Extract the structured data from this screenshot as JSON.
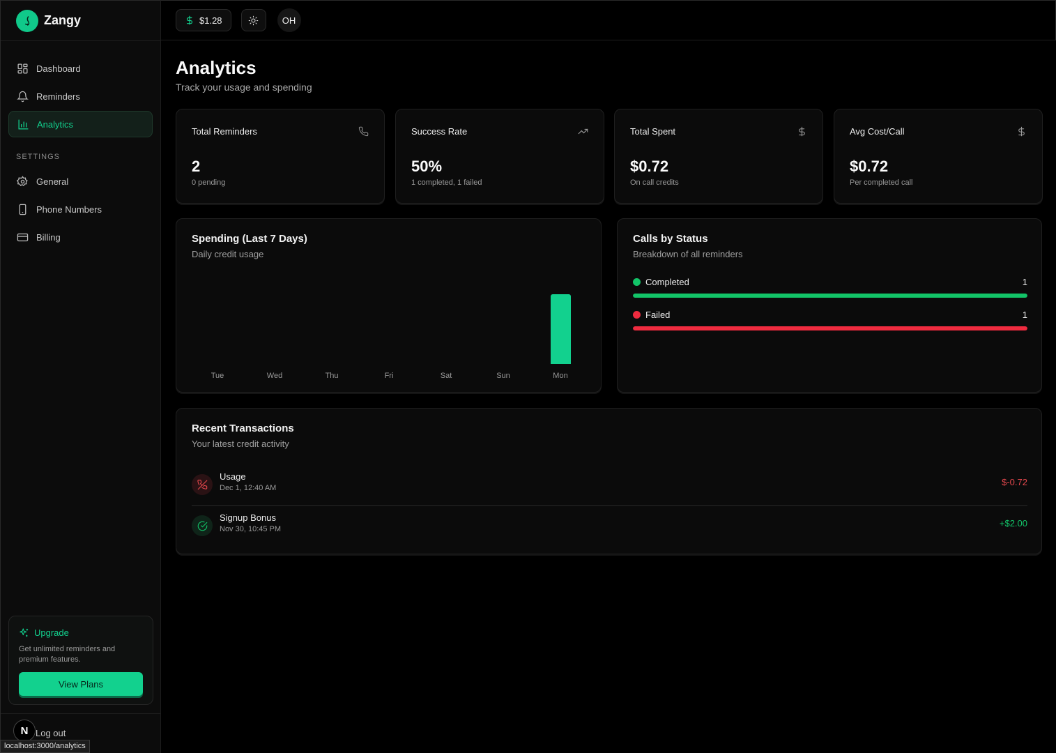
{
  "brand": {
    "name": "Zangy",
    "accent": "#12d18e"
  },
  "sidebar": {
    "items": [
      {
        "label": "Dashboard",
        "icon": "dashboard-icon"
      },
      {
        "label": "Reminders",
        "icon": "bell-icon"
      },
      {
        "label": "Analytics",
        "icon": "bar-chart-icon",
        "active": true
      }
    ],
    "settings_heading": "SETTINGS",
    "settings_items": [
      {
        "label": "General",
        "icon": "gear-icon"
      },
      {
        "label": "Phone Numbers",
        "icon": "phone-device-icon"
      },
      {
        "label": "Billing",
        "icon": "credit-card-icon"
      }
    ],
    "upgrade": {
      "title": "Upgrade",
      "description": "Get unlimited reminders and premium features.",
      "button": "View Plans"
    },
    "logout": "Log out",
    "next_badge": "N"
  },
  "status_url": "localhost:3000/analytics",
  "topbar": {
    "credits": "$1.28",
    "avatar_initials": "OH"
  },
  "page": {
    "title": "Analytics",
    "subtitle": "Track your usage and spending"
  },
  "stats": [
    {
      "label": "Total Reminders",
      "value": "2",
      "sub": "0 pending",
      "icon": "phone-icon"
    },
    {
      "label": "Success Rate",
      "value": "50%",
      "sub": "1 completed, 1 failed",
      "icon": "trending-up-icon"
    },
    {
      "label": "Total Spent",
      "value": "$0.72",
      "sub": "On call credits",
      "icon": "dollar-icon"
    },
    {
      "label": "Avg Cost/Call",
      "value": "$0.72",
      "sub": "Per completed call",
      "icon": "dollar-icon"
    }
  ],
  "spending": {
    "title": "Spending (Last 7 Days)",
    "subtitle": "Daily credit usage"
  },
  "chart_data": {
    "type": "bar",
    "categories": [
      "Tue",
      "Wed",
      "Thu",
      "Fri",
      "Sat",
      "Sun",
      "Mon"
    ],
    "values": [
      0,
      0,
      0,
      0,
      0,
      0,
      0.72
    ],
    "title": "Spending (Last 7 Days)",
    "subtitle": "Daily credit usage",
    "xlabel": "",
    "ylabel": "",
    "ylim": [
      0,
      0.72
    ],
    "grid": false,
    "color": "#12d18e"
  },
  "calls_by_status": {
    "title": "Calls by Status",
    "subtitle": "Breakdown of all reminders",
    "rows": [
      {
        "label": "Completed",
        "count": "1",
        "fraction": 1.0,
        "color": "#12c468"
      },
      {
        "label": "Failed",
        "count": "1",
        "fraction": 1.0,
        "color": "#ef2b3f"
      }
    ]
  },
  "transactions": {
    "title": "Recent Transactions",
    "subtitle": "Your latest credit activity",
    "rows": [
      {
        "name": "Usage",
        "date": "Dec 1, 12:40 AM",
        "amount": "$-0.72",
        "color": "#e5484d",
        "icon": "phone-off-icon"
      },
      {
        "name": "Signup Bonus",
        "date": "Nov 30, 10:45 PM",
        "amount": "+$2.00",
        "color": "#12c468",
        "icon": "check-circle-icon"
      }
    ]
  }
}
